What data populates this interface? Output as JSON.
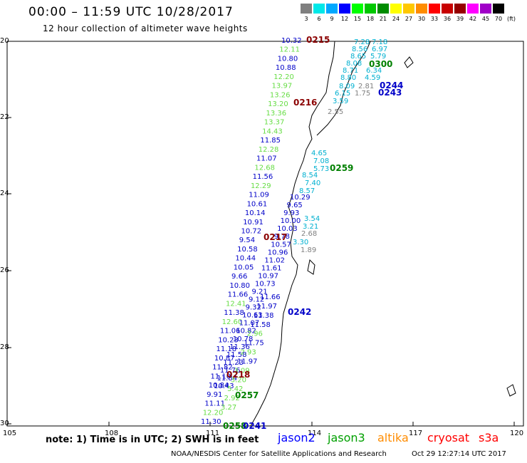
{
  "header": {
    "title": "00:00 – 11:59 UTC 10/28/2017",
    "subtitle": "12 hour collection of altimeter wave heights"
  },
  "colorbar": {
    "labels": [
      "3",
      "6",
      "9",
      "12",
      "15",
      "18",
      "21",
      "24",
      "27",
      "30",
      "33",
      "36",
      "39",
      "42",
      "45",
      "70"
    ],
    "unit": "(ft)",
    "colors": [
      "#808080",
      "#00e8e8",
      "#00a8ff",
      "#0000ff",
      "#00ff00",
      "#00c800",
      "#008c00",
      "#ffff00",
      "#ffc800",
      "#ff8c00",
      "#ff0000",
      "#c80000",
      "#960000",
      "#ff00ff",
      "#a000c8",
      "#000000"
    ]
  },
  "axes": {
    "lat_labels": [
      "20",
      "22",
      "24",
      "26",
      "28",
      "30"
    ],
    "lon_labels": [
      "105",
      "108",
      "111",
      "114",
      "117",
      "120"
    ]
  },
  "passes": [
    {
      "label": "0215",
      "color": "#8b0000"
    },
    {
      "label": "0216",
      "color": "#8b0000"
    },
    {
      "label": "0217",
      "color": "#8b0000"
    },
    {
      "label": "0218",
      "color": "#8b0000"
    },
    {
      "label": "0300",
      "color": "#008000"
    },
    {
      "label": "0259",
      "color": "#008000"
    },
    {
      "label": "0258",
      "color": "#008000"
    },
    {
      "label": "0257",
      "color": "#008000"
    },
    {
      "label": "0244",
      "color": "#0000c8"
    },
    {
      "label": "0243",
      "color": "#0000c8"
    },
    {
      "label": "0242",
      "color": "#0000c8"
    },
    {
      "label": "0241",
      "color": "#0000c8"
    }
  ],
  "track_west": {
    "values": [
      "10.32",
      "12.11",
      "10.80",
      "10.88",
      "12.20",
      "13.97",
      "13.26",
      "13.20",
      "13.36",
      "13.37",
      "14.43",
      "11.85",
      "12.28",
      "11.07",
      "12.68",
      "11.56",
      "12.29",
      "11.09",
      "10.61",
      "10.14",
      "10.91",
      "10.72",
      "9.54",
      "10.58",
      "10.44",
      "10.05",
      "9.66",
      "10.80",
      "11.66",
      "12.41",
      "11.38",
      "12.60",
      "11.06",
      "10.23",
      "11.18",
      "10.87",
      "11.82",
      "11.10",
      "10.84",
      "9.91",
      "11.11",
      "12.20",
      "11.30"
    ],
    "colors": [
      "blue",
      "light",
      "blue",
      "blue",
      "light",
      "light",
      "light",
      "light",
      "light",
      "light",
      "light",
      "blue",
      "light",
      "blue",
      "light",
      "blue",
      "light",
      "blue",
      "blue",
      "blue",
      "blue",
      "blue",
      "blue",
      "blue",
      "blue",
      "blue",
      "blue",
      "blue",
      "blue",
      "light",
      "blue",
      "light",
      "blue",
      "blue",
      "blue",
      "blue",
      "blue",
      "blue",
      "blue",
      "blue",
      "blue",
      "light",
      "blue"
    ]
  },
  "track_mid": {
    "values": [
      "10.29",
      "9.65",
      "9.93",
      "10.00",
      "10.03",
      "9.78",
      "10.57",
      "10.96",
      "11.02",
      "11.61",
      "10.97",
      "10.73",
      "9.21",
      "9.12",
      "9.32",
      "10.63",
      "11.07",
      "10.82",
      "10.78",
      "11.36",
      "11.58",
      "11.23",
      "11.76",
      "11.84",
      "10.43"
    ],
    "colors": [
      "blue",
      "blue",
      "blue",
      "blue",
      "blue",
      "blue",
      "blue",
      "blue",
      "blue",
      "blue",
      "blue",
      "blue",
      "blue",
      "blue",
      "blue",
      "blue",
      "blue",
      "blue",
      "blue",
      "blue",
      "blue",
      "blue",
      "blue",
      "blue",
      "blue"
    ]
  },
  "track_east": {
    "values": [
      "11.66",
      "11.97",
      "11.38",
      "11.58",
      "2.96",
      "11.75",
      "2.93",
      "11.97",
      "3.09",
      "3.20",
      "5.42",
      "2.92",
      "3.27"
    ],
    "colors": [
      "blue",
      "blue",
      "blue",
      "blue",
      "light",
      "blue",
      "light",
      "blue",
      "light",
      "light",
      "light",
      "light",
      "light"
    ]
  },
  "track_cyan": {
    "values": [
      "4.65",
      "7.08",
      "5.73",
      "8.54",
      "7.40",
      "8.57",
      "3.54",
      "3.21",
      "2.68",
      "3.30",
      "1.89",
      "7.28",
      "8.56",
      "8.65",
      "8.08",
      "8.71",
      "8.80",
      "8.09",
      "6.15",
      "3.59",
      "7.18",
      "6.97",
      "5.79",
      "6.34",
      "4.59",
      "2.81",
      "1.75",
      "2.55"
    ]
  },
  "legend": {
    "jason2": "jason2",
    "jason3": "jason3",
    "altika": "altika",
    "cryosat": "cryosat",
    "s3a": "s3a"
  },
  "footer": {
    "note": "note:  1) Time is in UTC;  2) SWH is in feet",
    "credit": "NOAA/NESDIS Center for Satellite Applications and Research",
    "timestamp": "Oct 29 12:27:14 UTC 2017"
  }
}
